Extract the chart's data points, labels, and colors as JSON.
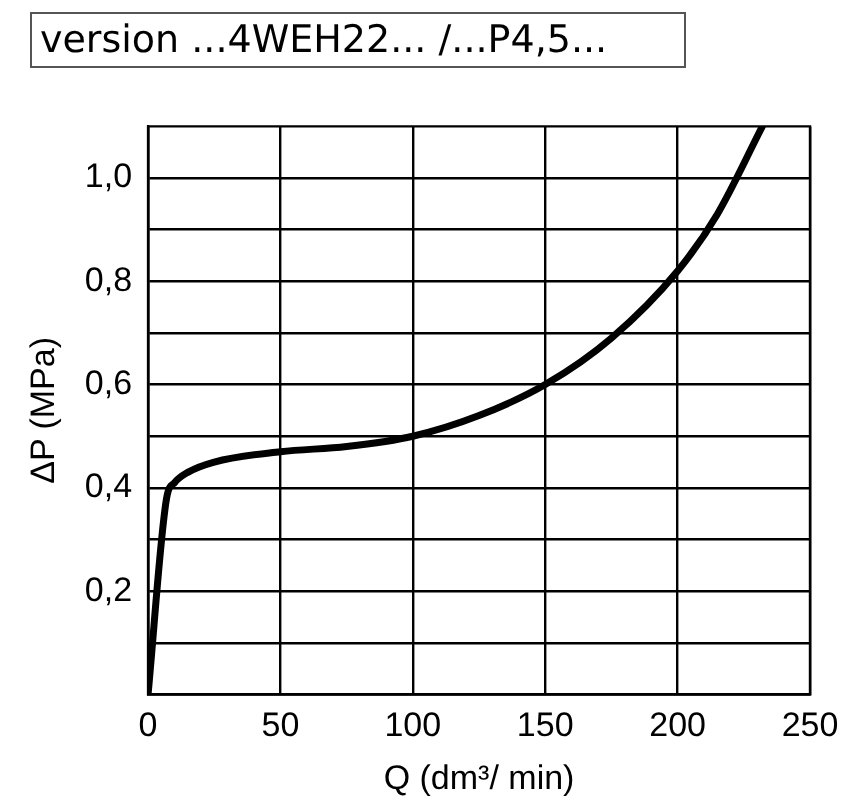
{
  "chart_data": {
    "type": "line",
    "title": "version  ...4WEH22... /...P4,5...",
    "xlabel": "Q (dm³/ min)",
    "ylabel": "ΔP (MPa)",
    "x": [
      0,
      7,
      10,
      15,
      25,
      50,
      75,
      100,
      125,
      150,
      175,
      200,
      215,
      232
    ],
    "series": [
      {
        "color": "#000000",
        "values": [
          0,
          0.38,
          0.41,
          0.43,
          0.45,
          0.47,
          0.48,
          0.5,
          0.54,
          0.6,
          0.69,
          0.82,
          0.93,
          1.1
        ]
      }
    ],
    "xlim": [
      0,
      250
    ],
    "xticks": [
      0,
      50,
      100,
      150,
      200,
      250
    ],
    "ylim": [
      0,
      1.1
    ],
    "yticks": [
      {
        "value": 0,
        "label": null
      },
      {
        "value": 0.1,
        "label": null
      },
      {
        "value": 0.2,
        "label": "0,2"
      },
      {
        "value": 0.3,
        "label": null
      },
      {
        "value": 0.4,
        "label": "0,4"
      },
      {
        "value": 0.5,
        "label": null
      },
      {
        "value": 0.6,
        "label": "0,6"
      },
      {
        "value": 0.7,
        "label": null
      },
      {
        "value": 0.8,
        "label": "0,8"
      },
      {
        "value": 0.9,
        "label": null
      },
      {
        "value": 1.0,
        "label": "1,0"
      }
    ],
    "grid": true,
    "legend": false,
    "marker": "none",
    "line_style": "solid"
  }
}
